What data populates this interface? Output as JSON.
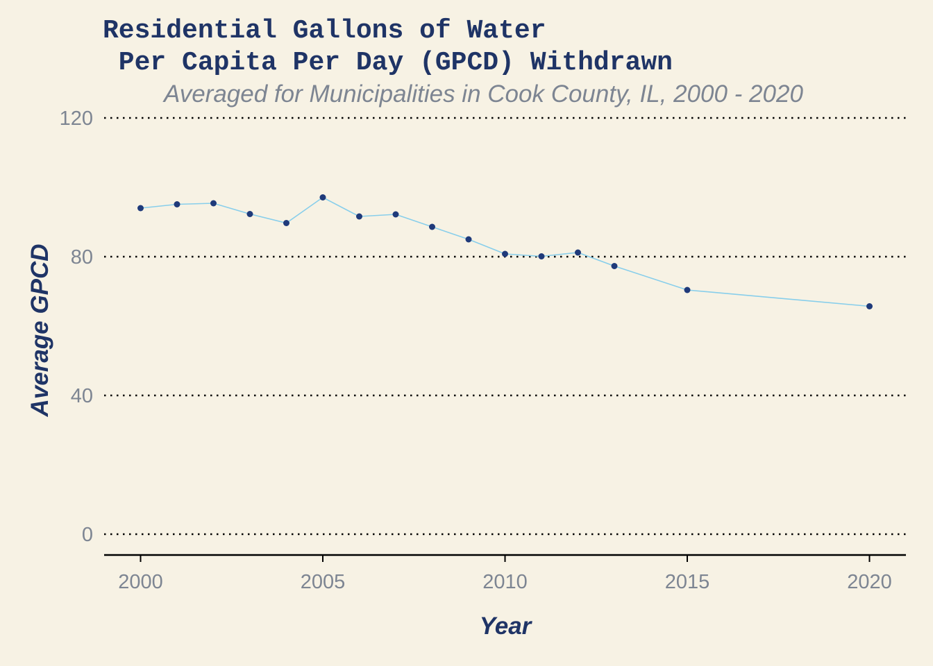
{
  "chart_data": {
    "type": "line",
    "title_line1": "Residential Gallons of Water",
    "title_line2": " Per Capita Per Day (GPCD) Withdrawn",
    "subtitle": "Averaged for Municipalities in Cook County, IL, 2000 - 2020",
    "xlabel": "Year",
    "ylabel": "Average GPCD",
    "x": [
      2000,
      2001,
      2002,
      2003,
      2004,
      2005,
      2006,
      2007,
      2008,
      2009,
      2010,
      2011,
      2012,
      2013,
      2015,
      2020
    ],
    "series": [
      {
        "values": [
          94.0,
          95.1,
          95.4,
          92.3,
          89.7,
          97.1,
          91.6,
          92.2,
          88.6,
          85.0,
          80.8,
          80.1,
          81.2,
          77.3,
          70.4,
          65.7
        ]
      }
    ],
    "xlim": [
      1999,
      2021
    ],
    "ylim": [
      -6,
      124
    ],
    "xticks": [
      2000,
      2005,
      2010,
      2015,
      2020
    ],
    "yticks": [
      0,
      40,
      80,
      120
    ],
    "grid": "horizontal dotted",
    "legend": "none",
    "colors": {
      "line": "#87ceeb",
      "point": "#1f3a7a",
      "title": "#1f3466",
      "subtitle": "#7d8592",
      "tick_label": "#7d8592",
      "grid": "#000000",
      "background": "#f7f2e4"
    }
  }
}
